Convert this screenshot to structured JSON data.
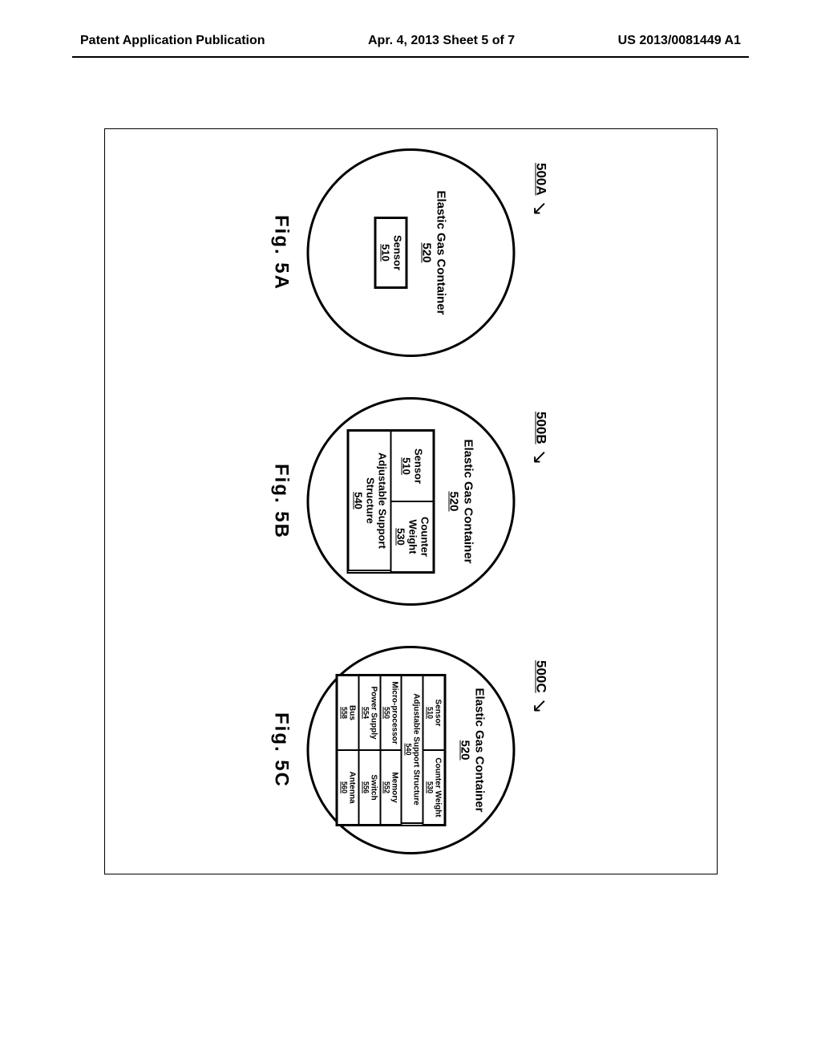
{
  "header": {
    "left": "Patent Application Publication",
    "center": "Apr. 4, 2013  Sheet 5 of 7",
    "right": "US 2013/0081449 A1"
  },
  "colors": {
    "stroke": "#000000",
    "background": "#ffffff"
  },
  "figures": {
    "a": {
      "ref": "500A",
      "caption": "Fig. 5A",
      "container": {
        "label": "Elastic Gas Container",
        "num": "520"
      },
      "components": [
        {
          "label": "Sensor",
          "num": "510"
        }
      ]
    },
    "b": {
      "ref": "500B",
      "caption": "Fig. 5B",
      "container": {
        "label": "Elastic Gas Container",
        "num": "520"
      },
      "topRow": [
        {
          "label": "Sensor",
          "num": "510"
        },
        {
          "label": "Counter Weight",
          "num": "530"
        }
      ],
      "bottom": {
        "label": "Adjustable Support Structure",
        "num": "540"
      }
    },
    "c": {
      "ref": "500C",
      "caption": "Fig. 5C",
      "container": {
        "label": "Elastic Gas Container",
        "num": "520"
      },
      "row1": [
        {
          "label": "Sensor",
          "num": "510"
        },
        {
          "label": "Counter Weight",
          "num": "530"
        }
      ],
      "row2full": {
        "label": "Adjustable Support Structure",
        "num": "540"
      },
      "row3": [
        {
          "label": "Micro-processor",
          "num": "550"
        },
        {
          "label": "Memory",
          "num": "552"
        }
      ],
      "row4": [
        {
          "label": "Power Supply",
          "num": "554"
        },
        {
          "label": "Switch",
          "num": "556"
        }
      ],
      "row5": [
        {
          "label": "Bus",
          "num": "558"
        },
        {
          "label": "Antenna",
          "num": "560"
        }
      ]
    }
  }
}
